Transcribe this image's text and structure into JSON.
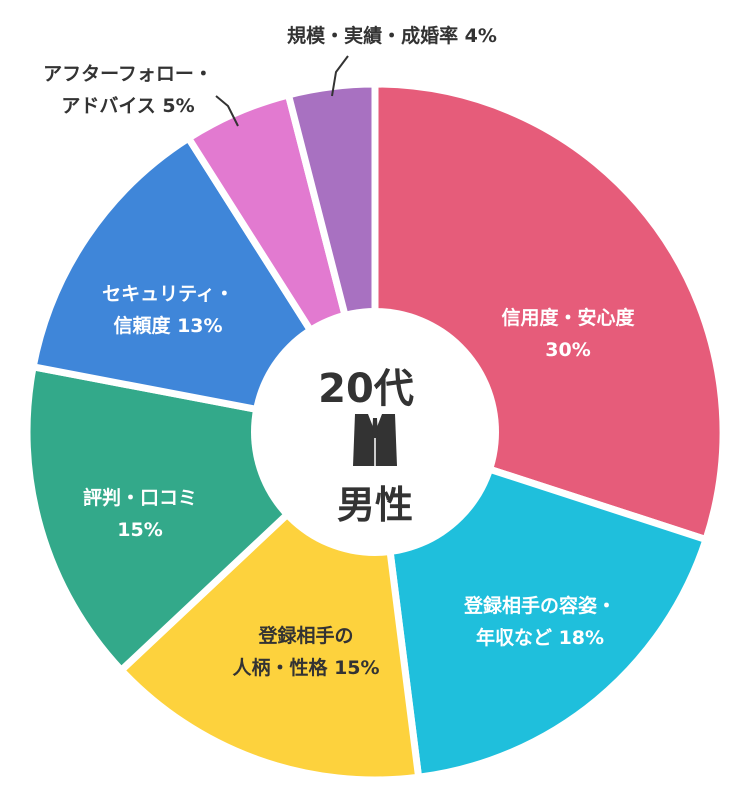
{
  "chart_data": {
    "type": "pie",
    "center_label": {
      "line1": "20代",
      "line2": "男性",
      "icon": "suit-icon"
    },
    "slices": [
      {
        "label_lines": [
          "信用度・安心度",
          "30%"
        ],
        "value": 30,
        "color": "#e65c7a",
        "text_color": "#ffffff"
      },
      {
        "label_lines": [
          "登録相手の容姿・",
          "年収など 18%"
        ],
        "value": 18,
        "color": "#1fbfdc",
        "text_color": "#ffffff"
      },
      {
        "label_lines": [
          "登録相手の",
          "人柄・性格 15%"
        ],
        "value": 15,
        "color": "#fdd23d",
        "text_color": "#333333"
      },
      {
        "label_lines": [
          "評判・口コミ",
          "15%"
        ],
        "value": 15,
        "color": "#33a98a",
        "text_color": "#ffffff"
      },
      {
        "label_lines": [
          "セキュリティ・",
          "信頼度 13%"
        ],
        "value": 13,
        "color": "#3f86d9",
        "text_color": "#ffffff"
      },
      {
        "label_lines": [
          "アフターフォロー・",
          "アドバイス 5%"
        ],
        "value": 5,
        "color": "#e27ad0",
        "text_color": "#333333"
      },
      {
        "label_lines": [
          "規模・実績・成婚率 4%"
        ],
        "value": 4,
        "color": "#a871c1",
        "text_color": "#333333"
      }
    ]
  }
}
